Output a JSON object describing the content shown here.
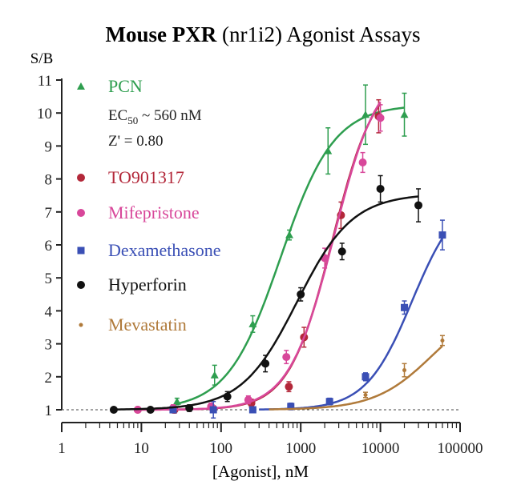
{
  "chart_data": {
    "type": "scatter",
    "title_bold": "Mouse PXR",
    "title_rest": " (nr1i2) Agonist Assays",
    "ylabel": "S/B",
    "xlabel": "[Agonist], nM",
    "xscale": "log",
    "xlim": [
      1,
      100000
    ],
    "ylim": [
      1,
      11
    ],
    "baseline": 1,
    "x_ticks": [
      {
        "value": 1,
        "label": "1"
      },
      {
        "value": 10,
        "label": "10"
      },
      {
        "value": 100,
        "label": "100"
      },
      {
        "value": 1000,
        "label": "1000"
      },
      {
        "value": 10000,
        "label": "10000"
      },
      {
        "value": 100000,
        "label": "100000"
      }
    ],
    "y_ticks": [
      {
        "value": 1,
        "label": "1"
      },
      {
        "value": 2,
        "label": "2"
      },
      {
        "value": 3,
        "label": "3"
      },
      {
        "value": 4,
        "label": "4"
      },
      {
        "value": 5,
        "label": "5"
      },
      {
        "value": 6,
        "label": "6"
      },
      {
        "value": 7,
        "label": "7"
      },
      {
        "value": 8,
        "label": "8"
      },
      {
        "value": 9,
        "label": "9"
      },
      {
        "value": 10,
        "label": "10"
      },
      {
        "value": 11,
        "label": "11"
      }
    ],
    "annotations": {
      "ec50_prefix": "EC",
      "ec50_sub": "50",
      "ec50_value": " ~ 560 nM",
      "zprime": "Z' = 0.80"
    },
    "legend_placement": "top-left",
    "series": [
      {
        "name": "PCN",
        "color": "#2e9e4f",
        "marker": "triangle",
        "points": [
          [
            28,
            1.25,
            0.1
          ],
          [
            83,
            2.05,
            0.3
          ],
          [
            250,
            3.6,
            0.25
          ],
          [
            720,
            6.3,
            0.15
          ],
          [
            2200,
            8.85,
            0.7
          ],
          [
            6500,
            9.95,
            0.9
          ],
          [
            20000,
            9.95,
            0.65
          ]
        ],
        "curve": {
          "bottom": 1.0,
          "top": 10.25,
          "ec50": 560,
          "hill": 1.3,
          "xmax": 20000
        }
      },
      {
        "name": "TO901317",
        "color": "#b3283a",
        "marker": "circle",
        "points": [
          [
            9,
            1.0,
            0.08
          ],
          [
            26,
            1.0,
            0.1
          ],
          [
            80,
            1.02,
            0.1
          ],
          [
            240,
            1.2,
            0.12
          ],
          [
            710,
            1.7,
            0.15
          ],
          [
            1100,
            3.2,
            0.3
          ],
          [
            3200,
            6.9,
            0.4
          ],
          [
            9500,
            9.9,
            0.5
          ]
        ],
        "curve": {
          "bottom": 1.0,
          "top": 11.3,
          "ec50": 2500,
          "hill": 1.6,
          "xmax": 10000
        }
      },
      {
        "name": "Mifepristone",
        "color": "#d8479a",
        "marker": "circle",
        "points": [
          [
            9,
            1.0,
            0.08
          ],
          [
            25,
            1.05,
            0.1
          ],
          [
            75,
            1.1,
            0.1
          ],
          [
            220,
            1.3,
            0.12
          ],
          [
            660,
            2.6,
            0.2
          ],
          [
            2000,
            5.6,
            0.3
          ],
          [
            6000,
            8.5,
            0.3
          ],
          [
            10000,
            9.85,
            0.4
          ]
        ],
        "curve": {
          "bottom": 1.0,
          "top": 11.5,
          "ec50": 2600,
          "hill": 1.55,
          "xmax": 10000
        }
      },
      {
        "name": "Dexamethasone",
        "color": "#3a4fb5",
        "marker": "square",
        "points": [
          [
            25,
            1.0,
            0.08
          ],
          [
            80,
            1.0,
            0.25
          ],
          [
            250,
            1.0,
            0.08
          ],
          [
            750,
            1.1,
            0.1
          ],
          [
            2300,
            1.25,
            0.1
          ],
          [
            6500,
            2.0,
            0.12
          ],
          [
            20000,
            4.1,
            0.2
          ],
          [
            60000,
            6.3,
            0.45
          ]
        ],
        "curve": {
          "bottom": 1.0,
          "top": 7.6,
          "ec50": 25000,
          "hill": 1.5,
          "xmin": 300,
          "xmax": 60000
        }
      },
      {
        "name": "Hyperforin",
        "color": "#111111",
        "marker": "circle",
        "points": [
          [
            4.5,
            1.0,
            0.05
          ],
          [
            13,
            1.0,
            0.05
          ],
          [
            40,
            1.05,
            0.1
          ],
          [
            120,
            1.4,
            0.15
          ],
          [
            360,
            2.4,
            0.25
          ],
          [
            1000,
            4.5,
            0.2
          ],
          [
            3300,
            5.8,
            0.25
          ],
          [
            10000,
            7.7,
            0.4
          ],
          [
            30000,
            7.2,
            0.5
          ]
        ],
        "curve": {
          "bottom": 1.0,
          "top": 7.55,
          "ec50": 900,
          "hill": 1.25,
          "xmin": 4.5,
          "xmax": 30000
        }
      },
      {
        "name": "Mevastatin",
        "color": "#b07a3a",
        "marker": "plus",
        "points": [
          [
            6500,
            1.45,
            0.08
          ],
          [
            20000,
            2.2,
            0.2
          ],
          [
            60000,
            3.1,
            0.15
          ]
        ],
        "curve": {
          "bottom": 1.0,
          "top": 4.3,
          "ec50": 45000,
          "hill": 1.2,
          "xmin": 400,
          "xmax": 60000
        }
      }
    ]
  }
}
